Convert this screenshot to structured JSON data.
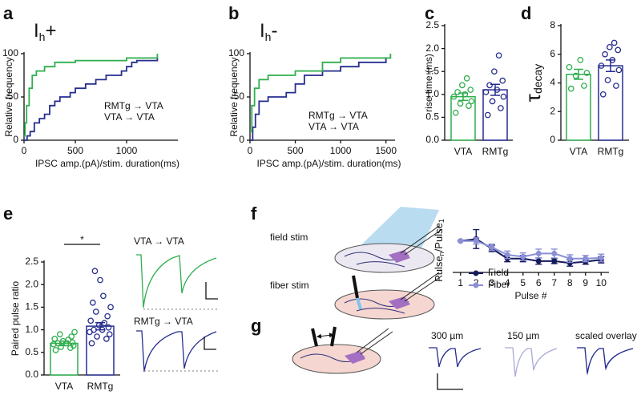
{
  "panel_labels": [
    "a",
    "b",
    "c",
    "d",
    "e",
    "f",
    "g"
  ],
  "chart_data": [
    {
      "type": "step",
      "title_parts": [
        "I",
        "h",
        "+"
      ],
      "xlabel": "IPSC amp.(pA)/stim. duration(ms)",
      "ylabel": "Relative frequency",
      "xlim": [
        0,
        1500
      ],
      "xticks": [
        0,
        500,
        1000
      ],
      "ylim": [
        0,
        100
      ],
      "yticks": [
        0,
        50,
        100
      ],
      "series": [
        {
          "name": "RMTg → VTA",
          "color": "#262d8e",
          "x": [
            0,
            30,
            60,
            100,
            150,
            200,
            250,
            300,
            350,
            450,
            500,
            600,
            700,
            800,
            950,
            1000,
            1050,
            1100,
            1300
          ],
          "values": [
            0,
            5,
            10,
            20,
            25,
            30,
            40,
            45,
            50,
            55,
            60,
            65,
            70,
            75,
            80,
            85,
            90,
            92,
            95
          ]
        },
        {
          "name": "VTA → VTA",
          "color": "#2fae4d",
          "x": [
            0,
            10,
            25,
            50,
            80,
            120,
            200,
            300,
            500,
            700,
            1000,
            1300
          ],
          "values": [
            5,
            20,
            40,
            60,
            75,
            80,
            85,
            90,
            92,
            92,
            95,
            100
          ]
        }
      ]
    },
    {
      "type": "step",
      "title_parts": [
        "I",
        "h",
        "-"
      ],
      "xlabel": "IPSC amp.(pA)/stim. duration(ms)",
      "ylabel": "Relative frequency",
      "xlim": [
        0,
        1600
      ],
      "xticks": [
        0,
        500,
        1000,
        1500
      ],
      "ylim": [
        0,
        100
      ],
      "yticks": [
        0,
        50,
        100
      ],
      "series": [
        {
          "name": "RMTg → VTA",
          "color": "#262d8e",
          "x": [
            0,
            30,
            60,
            100,
            200,
            300,
            400,
            500,
            600,
            800,
            1000,
            1200,
            1500
          ],
          "values": [
            0,
            15,
            30,
            45,
            50,
            50,
            55,
            65,
            75,
            80,
            85,
            90,
            95
          ]
        },
        {
          "name": "VTA → VTA",
          "color": "#2fae4d",
          "x": [
            0,
            20,
            50,
            100,
            200,
            300,
            500,
            800,
            1000,
            1200,
            1550
          ],
          "values": [
            10,
            40,
            60,
            70,
            75,
            75,
            80,
            90,
            95,
            95,
            100
          ]
        }
      ]
    },
    {
      "type": "bar_scatter",
      "ylabel": "rise time (ms)",
      "categories": [
        "VTA",
        "RMTg"
      ],
      "colors": [
        "#2fae4d",
        "#262d8e"
      ],
      "values": [
        0.95,
        1.1
      ],
      "errors": [
        0.08,
        0.12
      ],
      "points": [
        [
          0.6,
          0.75,
          0.8,
          0.85,
          0.95,
          1.0,
          1.05,
          1.1,
          1.2,
          1.35
        ],
        [
          0.55,
          0.7,
          0.85,
          0.95,
          1.05,
          1.1,
          1.2,
          1.3,
          1.5,
          1.85
        ]
      ],
      "ylim": [
        0,
        2.5
      ],
      "yticks": [
        {
          "value": 0,
          "label": "0.0"
        },
        0.5,
        {
          "value": 1,
          "label": "1.0"
        },
        1.5,
        {
          "value": 2,
          "label": "2.0"
        },
        2.5
      ]
    },
    {
      "type": "bar_scatter",
      "ylabel_parts": [
        "τ",
        "decay"
      ],
      "categories": [
        "VTA",
        "RMTg"
      ],
      "colors": [
        "#2fae4d",
        "#262d8e"
      ],
      "values": [
        4.6,
        5.2
      ],
      "errors": [
        0.35,
        0.4
      ],
      "points": [
        [
          3.6,
          3.8,
          4.5,
          4.7,
          5.1,
          5.6
        ],
        [
          3.2,
          3.8,
          4.2,
          4.9,
          5.2,
          5.6,
          6.0,
          6.3,
          6.5,
          6.8
        ]
      ],
      "ylim": [
        0,
        8
      ],
      "yticks": [
        0,
        2,
        4,
        6,
        8
      ]
    },
    {
      "type": "bar_scatter",
      "ylabel": "Paired pulse ratio",
      "categories": [
        "VTA",
        "RMTg"
      ],
      "colors": [
        "#2fae4d",
        "#262d8e"
      ],
      "values": [
        0.7,
        1.08
      ],
      "errors": [
        0.05,
        0.08
      ],
      "significance": "*",
      "points": [
        [
          0.55,
          0.6,
          0.62,
          0.65,
          0.68,
          0.7,
          0.7,
          0.72,
          0.75,
          0.78,
          0.8,
          0.85,
          0.9,
          0.95
        ],
        [
          0.7,
          0.8,
          0.85,
          0.9,
          0.95,
          1.0,
          1.0,
          1.05,
          1.1,
          1.15,
          1.2,
          1.3,
          1.4,
          1.5,
          1.6,
          1.75,
          2.1,
          2.3
        ]
      ],
      "ylim": [
        0,
        2.5
      ],
      "yticks": [
        {
          "value": 0,
          "label": "0.0"
        },
        0.5,
        {
          "value": 1,
          "label": "1.0"
        },
        1.5,
        {
          "value": 2,
          "label": "2.0"
        },
        2.5
      ]
    },
    {
      "type": "line_error",
      "xlabel": "Pulse #",
      "ylabel_parts": [
        "Pulse",
        "n",
        "/Pulse",
        "1"
      ],
      "x": [
        1,
        2,
        3,
        4,
        5,
        6,
        7,
        8,
        9,
        10
      ],
      "xlim": [
        0.5,
        10.5
      ],
      "xticks": [
        1,
        2,
        3,
        4,
        5,
        6,
        7,
        8,
        9,
        10
      ],
      "ylim": [
        0.5,
        1.2
      ],
      "series": [
        {
          "name": "Field",
          "color": "#151a5c",
          "values": [
            1.0,
            1.03,
            0.88,
            0.72,
            0.72,
            0.68,
            0.68,
            0.65,
            0.67,
            0.7
          ],
          "errors": [
            0,
            0.15,
            0.05,
            0.05,
            0.05,
            0.05,
            0.04,
            0.05,
            0.04,
            0.05
          ]
        },
        {
          "name": "Fiber",
          "color": "#8a8fd6",
          "values": [
            1.0,
            1.0,
            0.9,
            0.78,
            0.75,
            0.8,
            0.8,
            0.72,
            0.72,
            0.73
          ],
          "errors": [
            0,
            0.05,
            0.05,
            0.06,
            0.06,
            0.07,
            0.07,
            0.06,
            0.05,
            0.06
          ]
        }
      ]
    }
  ],
  "diagram": {
    "field_stim": "field stim",
    "fiber_stim": "fiber stim"
  },
  "traces": {
    "vta": "VTA → VTA",
    "rmtg": "RMTg → VTA",
    "d300": "300 µm",
    "d150": "150 µm",
    "overlay": "scaled overlay"
  }
}
